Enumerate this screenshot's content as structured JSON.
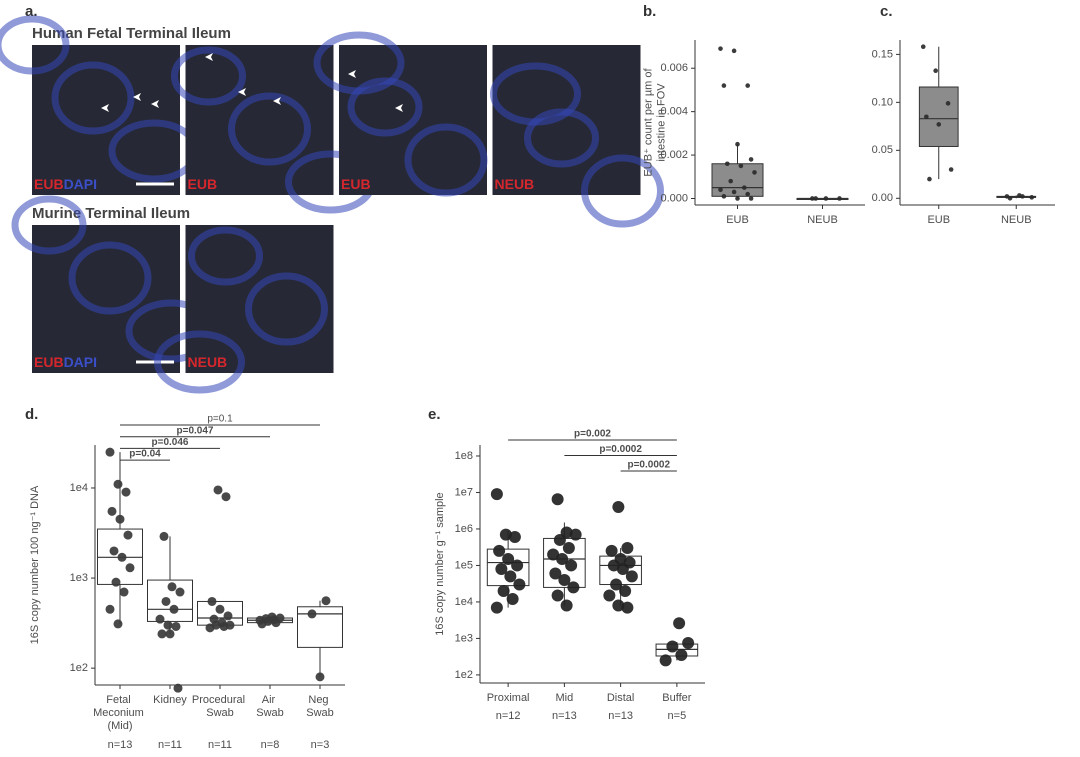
{
  "panel_a": {
    "label": "a.",
    "groups": [
      {
        "title": "Human Fetal Terminal Ileum",
        "images": [
          [
            "EUB",
            "DAPI"
          ],
          [
            "EUB"
          ],
          [
            "EUB"
          ],
          [
            "NEUB"
          ]
        ]
      },
      {
        "title": "Murine Terminal Ileum",
        "images": [
          [
            "EUB",
            "DAPI"
          ],
          [
            "NEUB"
          ]
        ]
      }
    ]
  },
  "chart_data": [
    {
      "type": "box",
      "label": "b.",
      "ylabel": [
        "EUB⁺ count per µm of",
        "intestine in FOV"
      ],
      "categories": [
        "EUB",
        "NEUB"
      ],
      "boxes": [
        {
          "min": 0,
          "q1": 0.0001,
          "median": 0.0005,
          "q3": 0.0016,
          "max": 0.0025
        },
        {
          "min": 0,
          "q1": 0,
          "median": 0,
          "q3": 0,
          "max": 0
        }
      ],
      "points": [
        [
          0.0069,
          0.0068,
          0.0052,
          0.0052,
          0.0025,
          0.0018,
          0.0016,
          0.0015,
          0.0012,
          0.0008,
          0.0005,
          0.0004,
          0.0003,
          0.0002,
          0.0001,
          0,
          0
        ],
        [
          0,
          0,
          0,
          0
        ]
      ],
      "ylim": [
        -0.0003,
        0.0073
      ],
      "yticks": [
        {
          "value": 0,
          "label": "0.000"
        },
        {
          "value": 0.002,
          "label": "0.002"
        },
        {
          "value": 0.004,
          "label": "0.004"
        },
        {
          "value": 0.006,
          "label": "0.006"
        }
      ],
      "log_scale": false,
      "grid": false,
      "box_color": "#8c8c8c",
      "point_color": "#2b2b2b"
    },
    {
      "type": "box",
      "label": "c.",
      "categories": [
        "EUB",
        "NEUB"
      ],
      "boxes": [
        {
          "min": 0.02,
          "q1": 0.054,
          "median": 0.083,
          "q3": 0.116,
          "max": 0.158
        },
        {
          "min": 0,
          "q1": 0.001,
          "median": 0.001,
          "q3": 0.002,
          "max": 0.003
        }
      ],
      "points": [
        [
          0.158,
          0.133,
          0.099,
          0.085,
          0.077,
          0.03,
          0.02
        ],
        [
          0.002,
          0.003,
          0.001,
          0,
          0.002
        ]
      ],
      "ylim": [
        -0.007,
        0.165
      ],
      "yticks": [
        {
          "value": 0,
          "label": "0.00"
        },
        0.05,
        {
          "value": 0.1,
          "label": "0.10"
        },
        0.15
      ],
      "log_scale": false,
      "grid": false,
      "box_color": "#8c8c8c",
      "point_color": "#2b2b2b"
    },
    {
      "type": "box",
      "label": "d.",
      "ylabel": [
        "16S copy number 100 ng⁻¹ DNA"
      ],
      "categories": [
        "Fetal Meconium (Mid)",
        "Kidney",
        "Procedural Swab",
        "Air Swab",
        "Neg Swab"
      ],
      "n_labels": [
        "n=13",
        "n=11",
        "n=11",
        "n=8",
        "n=3"
      ],
      "boxes": [
        {
          "min": 310,
          "q1": 850,
          "median": 1700,
          "q3": 3500,
          "max": 25000
        },
        {
          "min": 240,
          "q1": 330,
          "median": 450,
          "q3": 950,
          "max": 2900
        },
        {
          "min": 280,
          "q1": 300,
          "median": 360,
          "q3": 550,
          "max": 550
        },
        {
          "min": 310,
          "q1": 320,
          "median": 340,
          "q3": 360,
          "max": 370
        },
        {
          "min": 80,
          "q1": 170,
          "median": 400,
          "q3": 480,
          "max": 560
        }
      ],
      "points": [
        [
          25000,
          11000,
          9000,
          5500,
          4500,
          3000,
          2000,
          1700,
          1300,
          900,
          700,
          450,
          310
        ],
        [
          2900,
          800,
          700,
          550,
          450,
          350,
          300,
          290,
          240,
          240,
          60
        ],
        [
          9500,
          8000,
          550,
          450,
          380,
          350,
          320,
          300,
          300,
          290,
          280
        ],
        [
          370,
          360,
          355,
          345,
          340,
          330,
          320,
          310
        ],
        [
          560,
          400,
          80
        ]
      ],
      "comparisons": [
        {
          "label": "p=0.1",
          "from": 0,
          "to": 4,
          "bold": false
        },
        {
          "label": "p=0.047",
          "from": 0,
          "to": 3,
          "bold": true
        },
        {
          "label": "p=0.046",
          "from": 0,
          "to": 2,
          "bold": true
        },
        {
          "label": "p=0.04",
          "from": 0,
          "to": 1,
          "bold": true
        }
      ],
      "ylim": [
        65,
        30000
      ],
      "yticks": [
        {
          "value": 100,
          "label": "1e2"
        },
        {
          "value": 1000,
          "label": "1e3"
        },
        {
          "value": 10000,
          "label": "1e4"
        }
      ],
      "log_scale": true,
      "grid": false,
      "box_color": "#ffffff",
      "point_color": "#3a3a3a"
    },
    {
      "type": "box",
      "label": "e.",
      "ylabel": [
        "16S copy number g⁻¹ sample"
      ],
      "categories": [
        "Proximal",
        "Mid",
        "Distal",
        "Buffer"
      ],
      "n_labels": [
        "n=12",
        "n=13",
        "n=13",
        "n=5"
      ],
      "boxes": [
        {
          "min": 7000,
          "q1": 28000,
          "median": 120000,
          "q3": 280000,
          "max": 900000
        },
        {
          "min": 8000,
          "q1": 25000,
          "median": 150000,
          "q3": 550000,
          "max": 1500000
        },
        {
          "min": 8000,
          "q1": 30000,
          "median": 100000,
          "q3": 180000,
          "max": 300000
        },
        {
          "min": 250,
          "q1": 330,
          "median": 500,
          "q3": 700,
          "max": 800
        }
      ],
      "points": [
        [
          9000000,
          700000,
          600000,
          250000,
          150000,
          100000,
          80000,
          50000,
          30000,
          20000,
          12000,
          7000
        ],
        [
          6500000,
          800000,
          700000,
          500000,
          300000,
          200000,
          150000,
          100000,
          60000,
          40000,
          25000,
          15000,
          8000
        ],
        [
          4000000,
          300000,
          250000,
          150000,
          120000,
          100000,
          80000,
          50000,
          30000,
          20000,
          15000,
          8000,
          7000
        ],
        [
          2600,
          750,
          600,
          350,
          250
        ]
      ],
      "comparisons": [
        {
          "label": "p=0.002",
          "from": 0,
          "to": 3,
          "bold": true
        },
        {
          "label": "p=0.0002",
          "from": 1,
          "to": 3,
          "bold": true
        },
        {
          "label": "p=0.0002",
          "from": 2,
          "to": 3,
          "bold": true
        }
      ],
      "ylim": [
        60,
        200000000
      ],
      "yticks": [
        {
          "value": 100,
          "label": "1e2"
        },
        {
          "value": 1000,
          "label": "1e3"
        },
        {
          "value": 10000,
          "label": "1e4"
        },
        {
          "value": 100000,
          "label": "1e5"
        },
        {
          "value": 1000000,
          "label": "1e6"
        },
        {
          "value": 10000000,
          "label": "1e7"
        },
        {
          "value": 100000000,
          "label": "1e8"
        }
      ],
      "log_scale": true,
      "grid": false,
      "box_color": "#ffffff",
      "point_color": "#222222"
    }
  ]
}
